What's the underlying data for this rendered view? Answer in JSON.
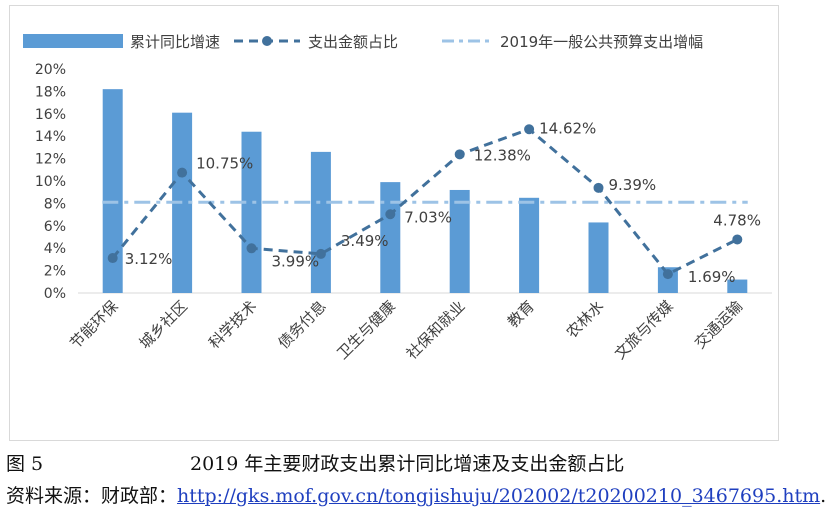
{
  "figure": {
    "number": "图 5",
    "title": "2019 年主要财政支出累计同比增速及支出金额占比",
    "source_label": "资料来源：财政部：",
    "source_url": "http://gks.mof.gov.cn/tongjishuju/202002/t20200210_3467695.htm",
    "source_end": "."
  },
  "chart_data": {
    "type": "bar",
    "title": "",
    "xlabel": "",
    "ylabel": "",
    "ylim": [
      0,
      20
    ],
    "yticks": [
      "0%",
      "2%",
      "4%",
      "6%",
      "8%",
      "10%",
      "12%",
      "14%",
      "16%",
      "18%",
      "20%"
    ],
    "grid": false,
    "legend_position": "top",
    "categories": [
      "节能环保",
      "城乡社区",
      "科学技术",
      "债务付息",
      "卫生与健康",
      "社保和就业",
      "教育",
      "农林水",
      "文旅与传媒",
      "交通运输"
    ],
    "series": [
      {
        "name": "累计同比增速",
        "type": "bar",
        "color": "#5b9bd5",
        "values": [
          18.2,
          16.1,
          14.4,
          12.6,
          9.9,
          9.2,
          8.5,
          6.3,
          2.3,
          1.2
        ]
      },
      {
        "name": "支出金额占比",
        "type": "line",
        "style": "dashed-with-markers",
        "color": "#41719c",
        "values": [
          3.12,
          10.75,
          3.99,
          3.49,
          7.03,
          12.38,
          14.62,
          9.39,
          1.69,
          4.78
        ],
        "labels": [
          "3.12%",
          "10.75%",
          "3.99%",
          "3.49%",
          "7.03%",
          "12.38%",
          "14.62%",
          "9.39%",
          "1.69%",
          "4.78%"
        ]
      },
      {
        "name": "2019年一般公共预算支出增幅",
        "type": "reference-line",
        "style": "dash-dot",
        "color": "#9dc3e6",
        "value": 8.1
      }
    ]
  }
}
